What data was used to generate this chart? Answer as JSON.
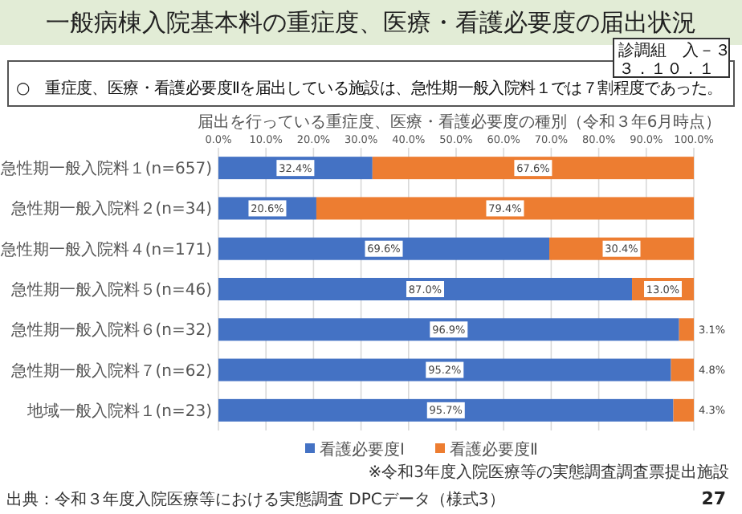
{
  "chart_data": {
    "type": "bar",
    "orientation": "horizontal",
    "stacked": true,
    "title": "一般病棟入院基本料の重症度、医療・看護必要度の届出状況",
    "subtitle": "届出を行っている重症度、医療・看護必要度の種別（令和３年6月時点）",
    "categories": [
      "急性期一般入院料１(n=657)",
      "急性期一般入院料２(n=34)",
      "急性期一般入院料４(n=171)",
      "急性期一般入院料５(n=46)",
      "急性期一般入院料６(n=32)",
      "急性期一般入院料７(n=62)",
      "地域一般入院料１(n=23)"
    ],
    "series": [
      {
        "name": "看護必要度Ⅰ",
        "color": "#4472c4",
        "values": [
          32.4,
          20.6,
          69.6,
          87.0,
          96.9,
          95.2,
          95.7
        ],
        "value_labels": [
          "32.4%",
          "20.6%",
          "69.6%",
          "87.0%",
          "96.9%",
          "95.2%",
          "95.7%"
        ]
      },
      {
        "name": "看護必要度Ⅱ",
        "color": "#ed7d31",
        "values": [
          67.6,
          79.4,
          30.4,
          13.0,
          3.1,
          4.8,
          4.3
        ],
        "value_labels": [
          "67.6%",
          "79.4%",
          "30.4%",
          "13.0%",
          "3.1%",
          "4.8%",
          "4.3%"
        ]
      }
    ],
    "xlim": [
      0,
      100
    ],
    "xticks": [
      {
        "value": 0,
        "label": "0.0%"
      },
      {
        "value": 10,
        "label": "10.0%"
      },
      {
        "value": 20,
        "label": "20.0%"
      },
      {
        "value": 30,
        "label": "30.0%"
      },
      {
        "value": 40,
        "label": "40.0%"
      },
      {
        "value": 50,
        "label": "50.0%"
      },
      {
        "value": 60,
        "label": "60.0%"
      },
      {
        "value": 70,
        "label": "70.0%"
      },
      {
        "value": 80,
        "label": "80.0%"
      },
      {
        "value": 90,
        "label": "90.0%"
      },
      {
        "value": 100,
        "label": "100.0%"
      }
    ],
    "grid": "x",
    "legend": "bottom",
    "annotations": [
      "○　重症度、医療・看護必要度Ⅱを届出している施設は、急性期一般入院料１では７割程度であった。",
      "診調組　入－３",
      "３．１０．１",
      "※令和3年度入院医療等の実態調査調査票提出施設",
      "出典：令和３年度入院医療等における実態調査 DPCデータ（様式3）",
      "27"
    ]
  }
}
